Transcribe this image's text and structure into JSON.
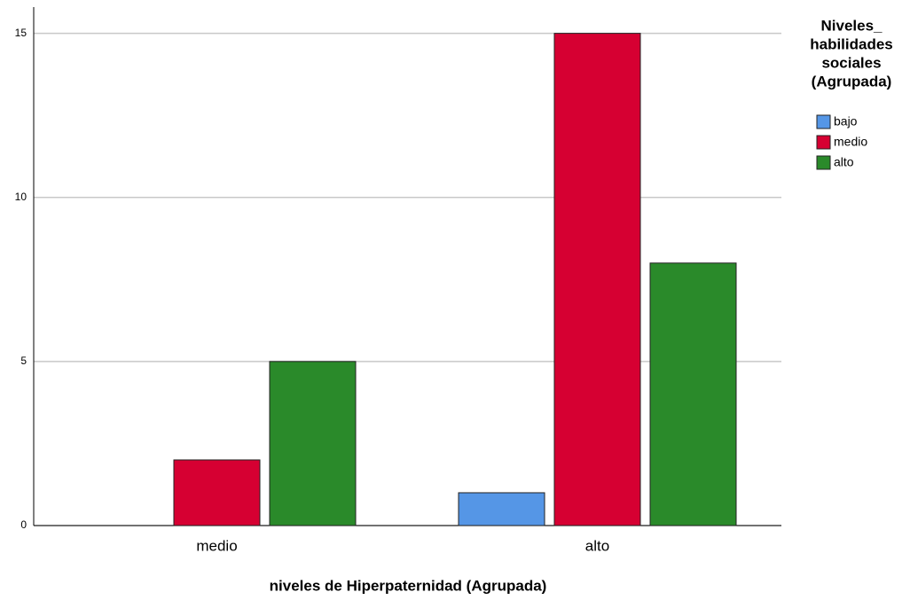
{
  "chart_data": {
    "type": "bar",
    "categories": [
      "medio",
      "alto"
    ],
    "series": [
      {
        "name": "bajo",
        "color": "#5596e6",
        "values": [
          0,
          1
        ]
      },
      {
        "name": "medio",
        "color": "#d60032",
        "values": [
          2,
          15
        ]
      },
      {
        "name": "alto",
        "color": "#2a8a2a",
        "values": [
          5,
          8
        ]
      }
    ],
    "xlabel": "niveles de Hiperpaternidad (Agrupada)",
    "legend_title": [
      "Niveles_",
      "habilidades",
      "sociales",
      "(Agrupada)"
    ],
    "ylim": [
      0,
      15.8
    ],
    "yticks": [
      0,
      5,
      10,
      15
    ],
    "grid": true,
    "legend": "right"
  }
}
